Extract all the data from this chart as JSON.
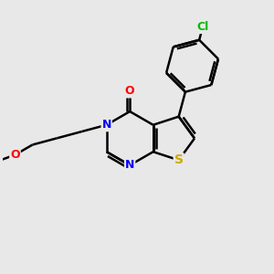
{
  "bg_color": "#e8e8e8",
  "bond_color": "#000000",
  "bond_lw": 1.8,
  "atom_colors": {
    "N": "#0000ff",
    "O": "#ff0000",
    "S": "#ccaa00",
    "Cl": "#00bb00",
    "C": "#000000"
  },
  "font_size": 9,
  "figsize": [
    3.0,
    3.0
  ],
  "dpi": 100,
  "xlim": [
    0,
    10
  ],
  "ylim": [
    0,
    10
  ]
}
